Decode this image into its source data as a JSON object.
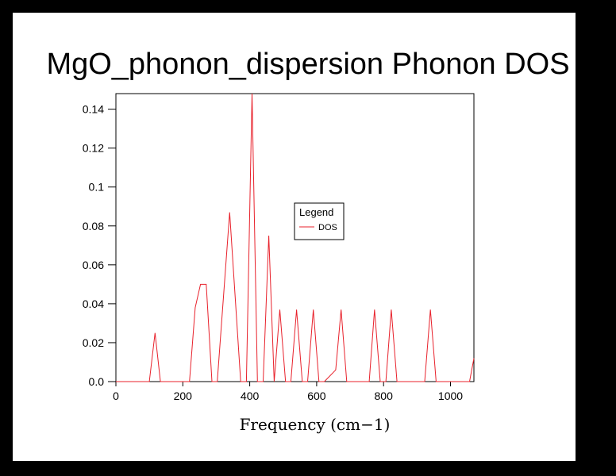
{
  "chart_data": {
    "type": "line",
    "title": "MgO_phonon_dispersion Phonon DOS",
    "xlabel": "Frequency (cm−1)",
    "ylabel": "",
    "xlim": [
      0,
      1070
    ],
    "ylim": [
      0,
      0.148
    ],
    "x_ticks": [
      0,
      200,
      400,
      600,
      800,
      1000
    ],
    "x_tick_labels": [
      "0",
      "200",
      "400",
      "600",
      "800",
      "1000"
    ],
    "y_ticks": [
      0,
      0.02,
      0.04,
      0.06,
      0.08,
      0.1,
      0.12,
      0.14
    ],
    "y_tick_labels": [
      "0.0",
      "0.02",
      "0.04",
      "0.06",
      "0.08",
      "0.1",
      "0.12",
      "0.14"
    ],
    "grid": false,
    "legend_title": "Legend",
    "legend_position": "center",
    "series": [
      {
        "name": "DOS",
        "color": "#e8212b",
        "x": [
          0,
          100,
          117,
          133,
          220,
          237,
          253,
          270,
          287,
          303,
          340,
          373,
          390,
          407,
          423,
          440,
          457,
          473,
          490,
          507,
          523,
          540,
          557,
          573,
          590,
          607,
          623,
          657,
          673,
          690,
          707,
          723,
          757,
          773,
          790,
          807,
          823,
          840,
          857,
          873,
          907,
          923,
          940,
          957,
          973,
          990,
          1007,
          1023,
          1040,
          1057,
          1070
        ],
        "y": [
          0,
          0,
          0.025,
          0,
          0,
          0.038,
          0.05,
          0.05,
          0,
          0,
          0.087,
          0,
          0,
          0.148,
          0,
          0,
          0.075,
          0,
          0.037,
          0,
          0,
          0.037,
          0,
          0,
          0.037,
          0,
          0,
          0.006,
          0.037,
          0,
          0,
          0,
          0,
          0.037,
          0,
          0,
          0.037,
          0,
          0,
          0,
          0,
          0,
          0.037,
          0,
          0,
          0,
          0,
          0,
          0,
          0,
          0.012
        ]
      }
    ]
  }
}
